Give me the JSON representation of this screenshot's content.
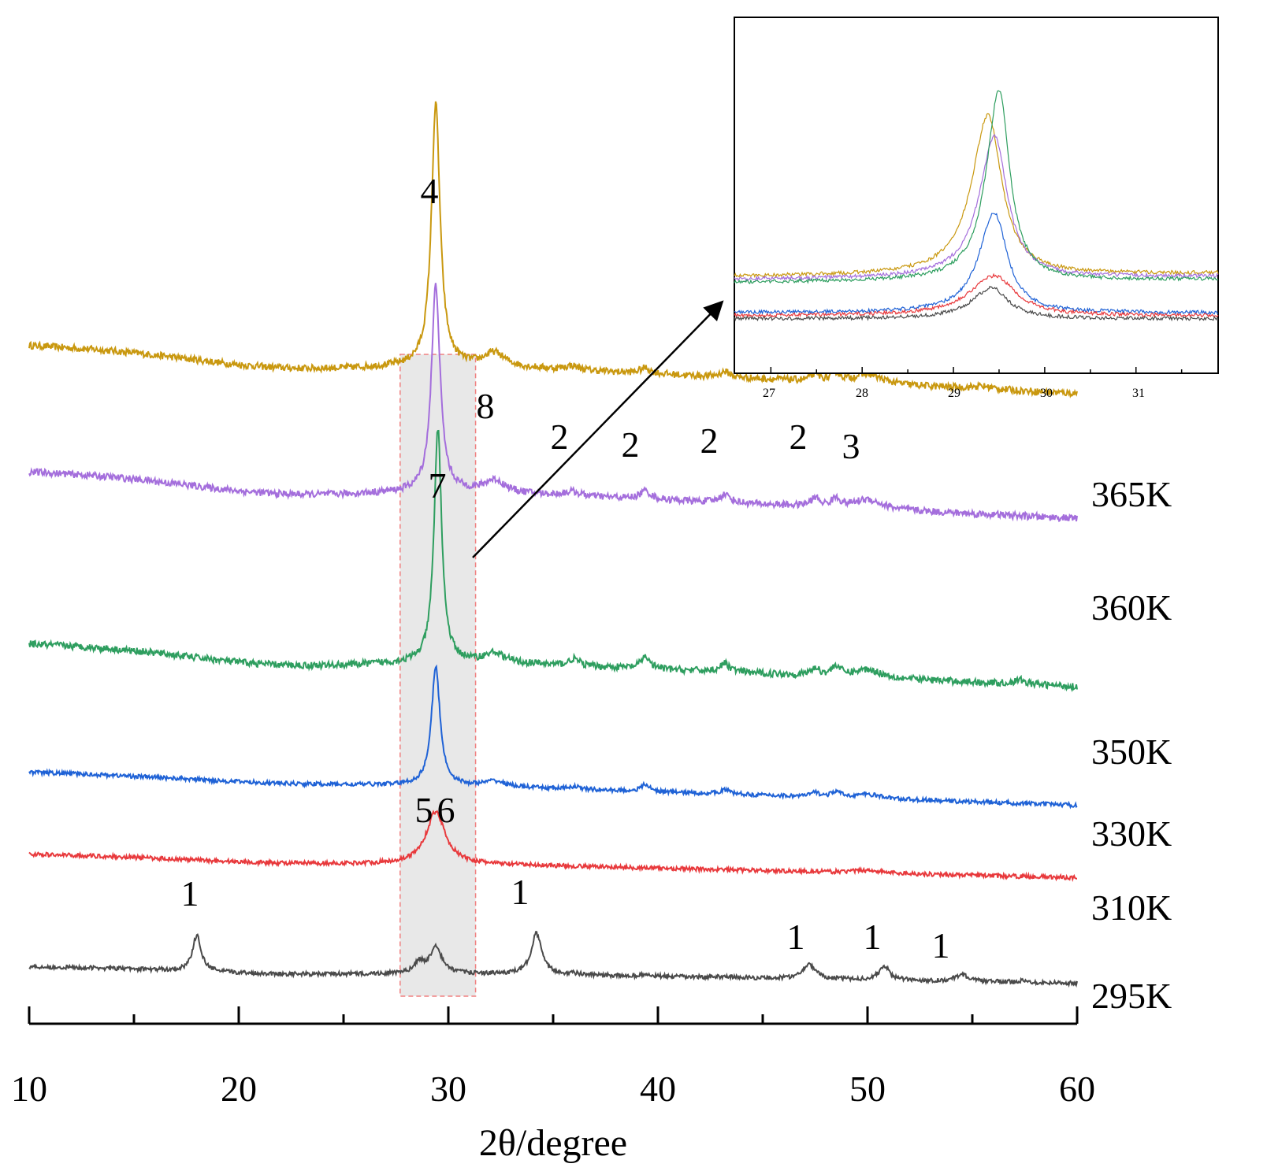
{
  "chart_data": [
    {
      "type": "line",
      "title": "",
      "xlabel": "2θ/degree",
      "ylabel": "",
      "xlim": [
        10,
        60
      ],
      "xticks": [
        "10",
        "20",
        "30",
        "40",
        "50",
        "60"
      ],
      "grid": false,
      "highlight_region": [
        27.7,
        31.3
      ],
      "series": [
        {
          "name": "365K",
          "color": "#C9980F",
          "baseline_start": 82,
          "baseline_end": 47,
          "peaks": [
            [
              29.4,
              190,
              0.25
            ],
            [
              32.2,
              10,
              0.6
            ],
            [
              35.9,
              3,
              0.4
            ],
            [
              39.4,
              4,
              0.3
            ],
            [
              43.2,
              4,
              0.3
            ],
            [
              47.5,
              5,
              0.25
            ],
            [
              48.5,
              6,
              0.25
            ],
            [
              50.0,
              7,
              0.8
            ],
            [
              55.5,
              2,
              0.6
            ]
          ]
        },
        {
          "name": "360K",
          "color": "#A46EDC",
          "baseline_start": 68,
          "baseline_end": 34,
          "peaks": [
            [
              29.4,
              150,
              0.25
            ],
            [
              32.2,
              9,
              0.6
            ],
            [
              35.9,
              3,
              0.4
            ],
            [
              39.4,
              6,
              0.3
            ],
            [
              43.2,
              6,
              0.3
            ],
            [
              47.5,
              6,
              0.25
            ],
            [
              48.5,
              6,
              0.25
            ],
            [
              50.0,
              7,
              0.8
            ]
          ]
        },
        {
          "name": "350K",
          "color": "#2E9E5F",
          "baseline_start": 50,
          "baseline_end": 19,
          "peaks": [
            [
              29.5,
              170,
              0.22
            ],
            [
              32.2,
              7,
              0.6
            ],
            [
              36.0,
              5,
              0.3
            ],
            [
              39.4,
              9,
              0.25
            ],
            [
              43.2,
              6,
              0.3
            ],
            [
              47.5,
              5,
              0.25
            ],
            [
              48.5,
              7,
              0.25
            ],
            [
              50.0,
              6,
              0.8
            ],
            [
              57.3,
              3,
              0.3
            ]
          ]
        },
        {
          "name": "330K",
          "color": "#1F62D6",
          "baseline_start": 34,
          "baseline_end": 10,
          "peaks": [
            [
              29.4,
              86,
              0.25
            ],
            [
              32.2,
              4,
              0.6
            ],
            [
              36.0,
              2,
              0.3
            ],
            [
              39.4,
              5,
              0.25
            ],
            [
              43.2,
              3,
              0.3
            ],
            [
              47.5,
              3,
              0.25
            ],
            [
              48.5,
              4,
              0.25
            ],
            [
              50.0,
              3,
              0.8
            ]
          ]
        },
        {
          "name": "310K",
          "color": "#E8393C",
          "baseline_start": 23,
          "baseline_end": 6,
          "peaks": [
            [
              29.4,
              38,
              0.55
            ],
            [
              50.0,
              2,
              0.8
            ]
          ]
        },
        {
          "name": "295K",
          "color": "#4A4A4A",
          "baseline_start": 10,
          "baseline_end": -2,
          "peaks": [
            [
              18.0,
              26,
              0.25
            ],
            [
              28.6,
              8,
              0.25
            ],
            [
              29.4,
              19,
              0.35
            ],
            [
              34.2,
              30,
              0.3
            ],
            [
              36.0,
              1,
              0.3
            ],
            [
              39.4,
              1,
              0.3
            ],
            [
              43.2,
              1,
              0.3
            ],
            [
              47.2,
              11,
              0.35
            ],
            [
              50.8,
              10,
              0.3
            ],
            [
              54.5,
              5,
              0.35
            ],
            [
              57.3,
              1,
              0.3
            ]
          ]
        }
      ],
      "peak_labels": [
        "4",
        "8",
        "7",
        "2",
        "2",
        "2",
        "2",
        "3",
        "5",
        "6",
        "1",
        "1",
        "1",
        "1",
        "1"
      ]
    },
    {
      "type": "line",
      "title": "",
      "xlabel": "",
      "ylabel": "",
      "xlim": [
        26.6,
        31.9
      ],
      "xticks": [
        "27",
        "28",
        "29",
        "30",
        "31"
      ],
      "series": [
        {
          "name": "365K",
          "color": "#C9980F",
          "baseline": 0.32,
          "peak_x": 29.38,
          "peak_h": 0.88,
          "width": 0.18
        },
        {
          "name": "360K",
          "color": "#A46EDC",
          "baseline": 0.31,
          "peak_x": 29.45,
          "peak_h": 0.78,
          "width": 0.17
        },
        {
          "name": "350K",
          "color": "#2E9E5F",
          "baseline": 0.3,
          "peak_x": 29.5,
          "peak_h": 1.05,
          "width": 0.14
        },
        {
          "name": "330K",
          "color": "#1F62D6",
          "baseline": 0.2,
          "peak_x": 29.45,
          "peak_h": 0.55,
          "width": 0.17
        },
        {
          "name": "310K",
          "color": "#E8393C",
          "baseline": 0.19,
          "peak_x": 29.45,
          "peak_h": 0.22,
          "width": 0.28
        },
        {
          "name": "295K",
          "color": "#4A4A4A",
          "baseline": 0.18,
          "peak_x": 29.42,
          "peak_h": 0.17,
          "width": 0.22
        }
      ]
    }
  ]
}
